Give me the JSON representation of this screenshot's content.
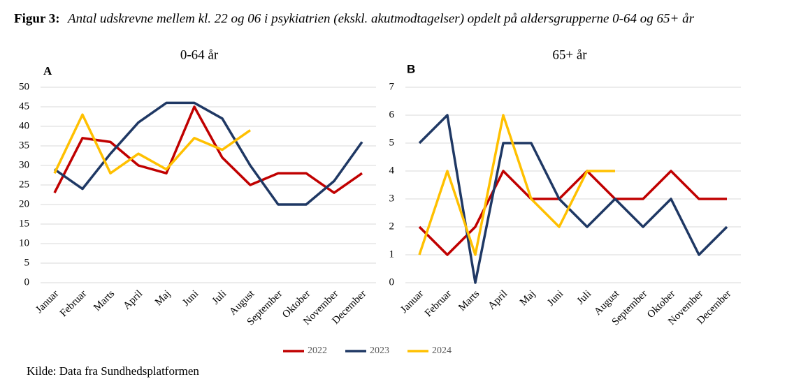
{
  "title_label": "Figur 3:",
  "title": "Antal udskrevne mellem kl. 22 og 06 i psykiatrien (ekskl. akutmodtagelser) opdelt på aldersgrupperne 0-64 og 65+ år",
  "source": "Kilde: Data fra Sundhedsplatformen",
  "chart_data": [
    {
      "type": "line",
      "title": "0-64 år",
      "panel_label": "A",
      "categories": [
        "Januar",
        "Februar",
        "Marts",
        "April",
        "Maj",
        "Juni",
        "Juli",
        "August",
        "September",
        "Oktober",
        "November",
        "December"
      ],
      "series": [
        {
          "name": "2022",
          "color": "#c00000",
          "values": [
            23,
            37,
            36,
            30,
            28,
            45,
            32,
            25,
            28,
            28,
            23,
            28
          ]
        },
        {
          "name": "2023",
          "color": "#1f3864",
          "values": [
            29,
            24,
            33,
            41,
            46,
            46,
            42,
            30,
            20,
            20,
            26,
            36
          ]
        },
        {
          "name": "2024",
          "color": "#ffc000",
          "values": [
            28,
            43,
            28,
            33,
            29,
            37,
            34,
            39,
            null,
            null,
            null,
            null
          ]
        }
      ],
      "ylim": [
        0,
        50
      ],
      "yticks": [
        0,
        5,
        10,
        15,
        20,
        25,
        30,
        35,
        40,
        45,
        50
      ],
      "grid": true
    },
    {
      "type": "line",
      "title": "65+ år",
      "panel_label": "B",
      "categories": [
        "Januar",
        "Februar",
        "Marts",
        "April",
        "Maj",
        "Juni",
        "Juli",
        "August",
        "September",
        "Oktober",
        "November",
        "December"
      ],
      "series": [
        {
          "name": "2022",
          "color": "#c00000",
          "values": [
            2,
            1,
            2,
            4,
            3,
            3,
            4,
            3,
            3,
            4,
            3,
            3
          ]
        },
        {
          "name": "2023",
          "color": "#1f3864",
          "values": [
            5,
            6,
            0,
            5,
            5,
            3,
            2,
            3,
            2,
            3,
            1,
            2
          ]
        },
        {
          "name": "2024",
          "color": "#ffc000",
          "values": [
            1,
            4,
            1,
            6,
            3,
            2,
            4,
            4,
            null,
            null,
            null,
            null
          ]
        }
      ],
      "ylim": [
        0,
        7
      ],
      "yticks": [
        0,
        1,
        2,
        3,
        4,
        5,
        6,
        7
      ],
      "grid": true
    }
  ]
}
